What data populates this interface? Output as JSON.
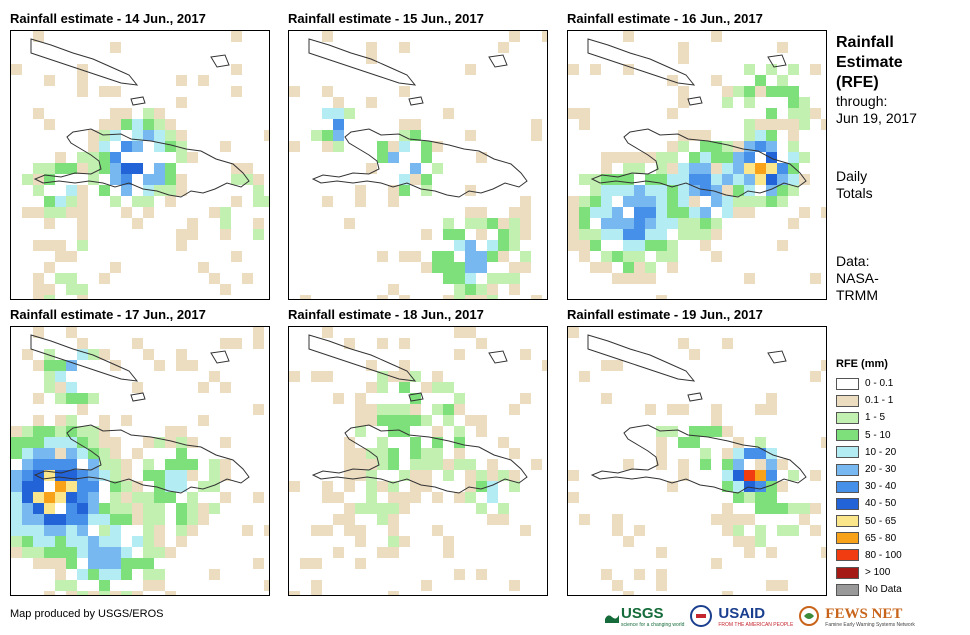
{
  "panels": [
    {
      "title": "Rainfall estimate - 14 Jun., 2017"
    },
    {
      "title": "Rainfall estimate - 15 Jun., 2017"
    },
    {
      "title": "Rainfall estimate - 16 Jun., 2017"
    },
    {
      "title": "Rainfall estimate - 17 Jun., 2017"
    },
    {
      "title": "Rainfall estimate - 18 Jun., 2017"
    },
    {
      "title": "Rainfall estimate - 19 Jun., 2017"
    }
  ],
  "side": {
    "title_lines": [
      "Rainfall",
      "Estimate",
      "(RFE)"
    ],
    "through_label": "through:",
    "through_date": "Jun 19, 2017",
    "totals_lines": [
      "Daily",
      "Totals"
    ],
    "data_lines": [
      "Data:",
      "NASA-",
      "TRMM"
    ]
  },
  "legend": {
    "title": "RFE (mm)",
    "items": [
      {
        "label": "0 - 0.1",
        "color": "#ffffff"
      },
      {
        "label": "0.1 - 1",
        "color": "#ecdcc0"
      },
      {
        "label": "1 - 5",
        "color": "#c2f0b0"
      },
      {
        "label": "5 - 10",
        "color": "#7ee07a"
      },
      {
        "label": "10 - 20",
        "color": "#b4ecf4"
      },
      {
        "label": "20 - 30",
        "color": "#78b8f0"
      },
      {
        "label": "30 - 40",
        "color": "#4690ea"
      },
      {
        "label": "40 - 50",
        "color": "#2264d8"
      },
      {
        "label": "50 - 65",
        "color": "#fbe68c"
      },
      {
        "label": "65 - 80",
        "color": "#f8a21a"
      },
      {
        "label": "80 - 100",
        "color": "#f03c10"
      },
      {
        "label": "> 100",
        "color": "#a51a14"
      },
      {
        "label": "No Data",
        "color": "#999999"
      }
    ]
  },
  "footer": {
    "credit": "Map produced by USGS/EROS"
  },
  "logos": {
    "usgs": "USGS",
    "usgs_tagline": "science for a changing world",
    "usaid": "USAID",
    "usaid_tagline": "FROM THE AMERICAN PEOPLE",
    "fewsnet": "FEWS NET",
    "fewsnet_tagline": "Famine Early Warning Systems Network"
  }
}
